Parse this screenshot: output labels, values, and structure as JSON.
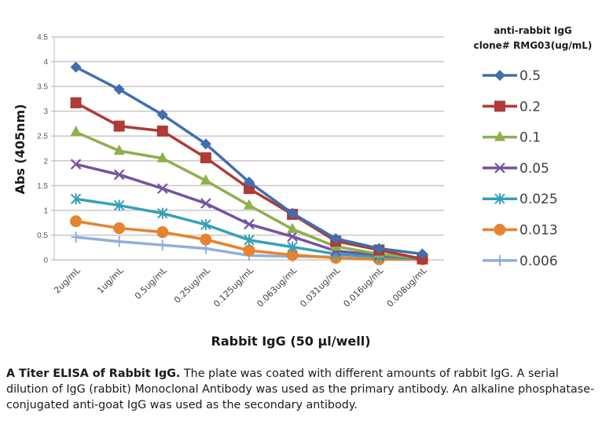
{
  "chart_data": {
    "type": "line",
    "title": "",
    "xlabel": "Rabbit IgG (50 µl/well)",
    "ylabel": "Abs (405nm)",
    "ylim": [
      0,
      4.5
    ],
    "yticks": [
      "0",
      "0.5",
      "1",
      "1.5",
      "2",
      "2.5",
      "3",
      "3.5",
      "4",
      "4.5"
    ],
    "ytick_values": [
      0,
      0.5,
      1,
      1.5,
      2,
      2.5,
      3,
      3.5,
      4,
      4.5
    ],
    "grid": true,
    "legend_position": "right",
    "legend_title": [
      "anti-rabbit IgG",
      "clone# RMG03(ug/mL)"
    ],
    "categories": [
      "2ug/mL",
      "1ug/mL",
      "0.5ug/mL",
      "0.25ug/mL",
      "0.125ug/mL",
      "0.063ug/mL",
      "0.031ug/mL",
      "0.016ug/mL",
      "0.008ug/mL"
    ],
    "series": [
      {
        "name": "0.5",
        "color": "#3f6fb0",
        "marker": "diamond",
        "values": [
          3.89,
          3.44,
          2.93,
          2.34,
          1.57,
          0.94,
          0.43,
          0.23,
          0.12
        ]
      },
      {
        "name": "0.2",
        "color": "#b03a36",
        "marker": "square",
        "values": [
          3.17,
          2.7,
          2.6,
          2.06,
          1.44,
          0.92,
          0.38,
          0.2,
          0.02
        ]
      },
      {
        "name": "0.1",
        "color": "#8db04a",
        "marker": "triangle",
        "values": [
          2.58,
          2.2,
          2.05,
          1.6,
          1.1,
          0.62,
          0.27,
          0.12,
          0.03
        ]
      },
      {
        "name": "0.05",
        "color": "#7453a0",
        "marker": "x",
        "values": [
          1.93,
          1.72,
          1.44,
          1.14,
          0.72,
          0.47,
          0.18,
          0.1,
          0.03
        ]
      },
      {
        "name": "0.025",
        "color": "#35a1b7",
        "marker": "star",
        "values": [
          1.23,
          1.1,
          0.94,
          0.71,
          0.4,
          0.26,
          0.12,
          0.06,
          0.02
        ]
      },
      {
        "name": "0.013",
        "color": "#e5832f",
        "marker": "circle",
        "values": [
          0.78,
          0.64,
          0.56,
          0.41,
          0.19,
          0.1,
          0.04,
          0.01,
          0.01
        ]
      },
      {
        "name": "0.006",
        "color": "#92aedb",
        "marker": "plus",
        "values": [
          0.46,
          0.37,
          0.3,
          0.23,
          0.09,
          0.07,
          0.06,
          0.06,
          0.03
        ]
      }
    ]
  },
  "caption": {
    "bold": "A Titer ELISA of Rabbit IgG.",
    "text": " The plate was coated with different amounts of rabbit IgG. A serial dilution of IgG (rabbit) Monoclonal Antibody was used as the primary antibody. An alkaline phosphatase-conjugated anti-goat IgG was used as the secondary antibody."
  }
}
